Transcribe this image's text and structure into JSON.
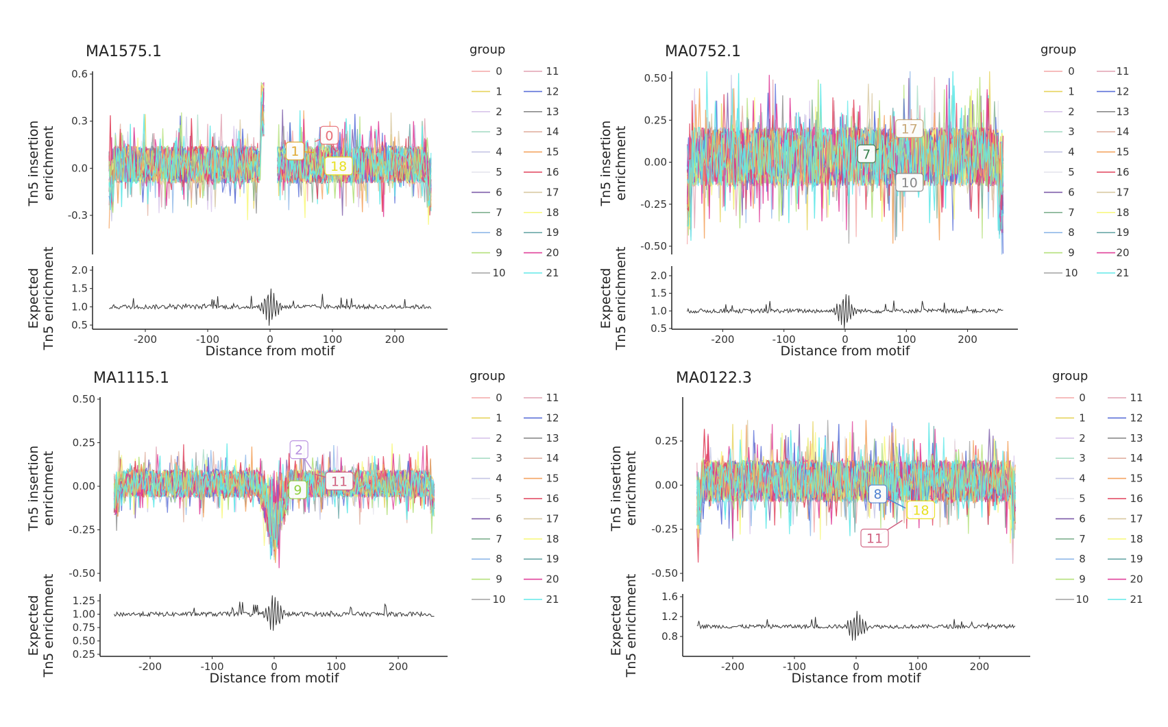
{
  "legend_title": "group",
  "groups": [
    "0",
    "1",
    "2",
    "3",
    "4",
    "5",
    "6",
    "7",
    "8",
    "9",
    "10",
    "11",
    "12",
    "13",
    "14",
    "15",
    "16",
    "17",
    "18",
    "19",
    "20",
    "21"
  ],
  "group_colors": [
    "#f4a6a6",
    "#e6d35a",
    "#d7c4ea",
    "#a8dcc5",
    "#c4c4e4",
    "#e4e4ec",
    "#7b5aa8",
    "#7fb08f",
    "#8fb8e8",
    "#b4e07a",
    "#a0a0a0",
    "#e0a0b0",
    "#5a6fd8",
    "#8a8a8a",
    "#e0b0a0",
    "#f4a460",
    "#e0405a",
    "#d8c8a0",
    "#f8f880",
    "#6aa8a8",
    "#e0409a",
    "#60e8e8"
  ],
  "chart_data": [
    {
      "type": "line",
      "title": "MA1575.1",
      "xlabel": "Distance from motif",
      "ylabel_main": [
        "Tn5 insertion",
        "enrichment"
      ],
      "ylabel_expected": [
        "Expected",
        "Tn5 enrichment"
      ],
      "x_range": [
        -260,
        260
      ],
      "x_ticks": [
        -200,
        -100,
        0,
        100,
        200
      ],
      "main_ylim": [
        -0.42,
        0.62
      ],
      "main_y_ticks": [
        {
          "v": 0.6,
          "label": "0.6"
        },
        {
          "v": 0.3,
          "label": "0.3"
        },
        {
          "v": 0.0,
          "label": "0.0"
        },
        {
          "v": -0.3,
          "label": "-0.3"
        }
      ],
      "expected_ylim": [
        0.45,
        2.05
      ],
      "expected_y_ticks": [
        {
          "v": 2.0,
          "label": "2.0"
        },
        {
          "v": 1.5,
          "label": "1.5"
        },
        {
          "v": 1.0,
          "label": "1.0"
        },
        {
          "v": 0.5,
          "label": "0.5"
        }
      ],
      "main_typical_amplitude": 0.15,
      "expected_baseline": 1.0,
      "annotations": [
        {
          "label": "0",
          "group": 0,
          "color": "#e8707a"
        },
        {
          "label": "1",
          "group": 1,
          "color": "#e0a830"
        },
        {
          "label": "18",
          "group": 18,
          "color": "#e8e020"
        }
      ]
    },
    {
      "type": "line",
      "title": "MA0752.1",
      "xlabel": "Distance from motif",
      "ylabel_main": [
        "Tn5 insertion",
        "enrichment"
      ],
      "ylabel_expected": [
        "Expected",
        "Tn5 enrichment"
      ],
      "x_range": [
        -260,
        260
      ],
      "x_ticks": [
        -200,
        -100,
        0,
        100,
        200
      ],
      "main_ylim": [
        -0.55,
        0.55
      ],
      "main_y_ticks": [
        {
          "v": 0.5,
          "label": "0.50"
        },
        {
          "v": 0.25,
          "label": "0.25"
        },
        {
          "v": 0.0,
          "label": "0.00"
        },
        {
          "v": -0.25,
          "label": "-0.25"
        },
        {
          "v": -0.5,
          "label": "-0.50"
        }
      ],
      "expected_ylim": [
        0.5,
        2.1
      ],
      "expected_y_ticks": [
        {
          "v": 2.0,
          "label": "2.0"
        },
        {
          "v": 1.5,
          "label": "1.5"
        },
        {
          "v": 1.0,
          "label": "1.0"
        },
        {
          "v": 0.5,
          "label": "0.5"
        }
      ],
      "main_typical_amplitude": 0.22,
      "expected_baseline": 1.0,
      "annotations": [
        {
          "label": "17",
          "group": 17,
          "color": "#c8a878"
        },
        {
          "label": "7",
          "group": 7,
          "color": "#3a8050"
        },
        {
          "label": "10",
          "group": 10,
          "color": "#888888"
        }
      ]
    },
    {
      "type": "line",
      "title": "MA1115.1",
      "xlabel": "Distance from motif",
      "ylabel_main": [
        "Tn5 insertion",
        "enrichment"
      ],
      "ylabel_expected": [
        "Expected",
        "Tn5 enrichment"
      ],
      "x_range": [
        -260,
        260
      ],
      "x_ticks": [
        -200,
        -100,
        0,
        100,
        200
      ],
      "main_ylim": [
        -0.55,
        0.52
      ],
      "main_y_ticks": [
        {
          "v": 0.5,
          "label": "0.50"
        },
        {
          "v": 0.25,
          "label": "0.25"
        },
        {
          "v": 0.0,
          "label": "0.00"
        },
        {
          "v": -0.25,
          "label": "-0.25"
        },
        {
          "v": -0.5,
          "label": "-0.50"
        }
      ],
      "expected_ylim": [
        0.23,
        1.35
      ],
      "expected_y_ticks": [
        {
          "v": 1.25,
          "label": "1.25"
        },
        {
          "v": 1.0,
          "label": "1.00"
        },
        {
          "v": 0.75,
          "label": "0.75"
        },
        {
          "v": 0.5,
          "label": "0.50"
        },
        {
          "v": 0.25,
          "label": "0.25"
        }
      ],
      "main_typical_amplitude": 0.1,
      "expected_baseline": 1.0,
      "annotations": [
        {
          "label": "2",
          "group": 2,
          "color": "#b890e0"
        },
        {
          "label": "9",
          "group": 9,
          "color": "#90d040"
        },
        {
          "label": "11",
          "group": 11,
          "color": "#d06080"
        }
      ]
    },
    {
      "type": "line",
      "title": "MA0122.3",
      "xlabel": "Distance from motif",
      "ylabel_main": [
        "Tn5 insertion",
        "enrichment"
      ],
      "ylabel_expected": [
        "Expected",
        "Tn5 enrichment"
      ],
      "x_range": [
        -260,
        260
      ],
      "x_ticks": [
        -200,
        -100,
        0,
        100,
        200
      ],
      "main_ylim": [
        -0.52,
        0.47
      ],
      "main_y_ticks": [
        {
          "v": 0.25,
          "label": "0.25"
        },
        {
          "v": 0.0,
          "label": "0.00"
        },
        {
          "v": -0.25,
          "label": "-0.25"
        },
        {
          "v": -0.5,
          "label": "-0.50"
        }
      ],
      "expected_ylim": [
        0.6,
        1.65
      ],
      "expected_y_ticks": [
        {
          "v": 1.6,
          "label": "1.6"
        },
        {
          "v": 1.2,
          "label": "1.2"
        },
        {
          "v": 0.8,
          "label": "0.8"
        }
      ],
      "main_typical_amplitude": 0.15,
      "expected_baseline": 1.0,
      "annotations": [
        {
          "label": "8",
          "group": 8,
          "color": "#5080d0"
        },
        {
          "label": "18",
          "group": 18,
          "color": "#e8e020"
        },
        {
          "label": "11",
          "group": 11,
          "color": "#d06080"
        }
      ]
    }
  ]
}
